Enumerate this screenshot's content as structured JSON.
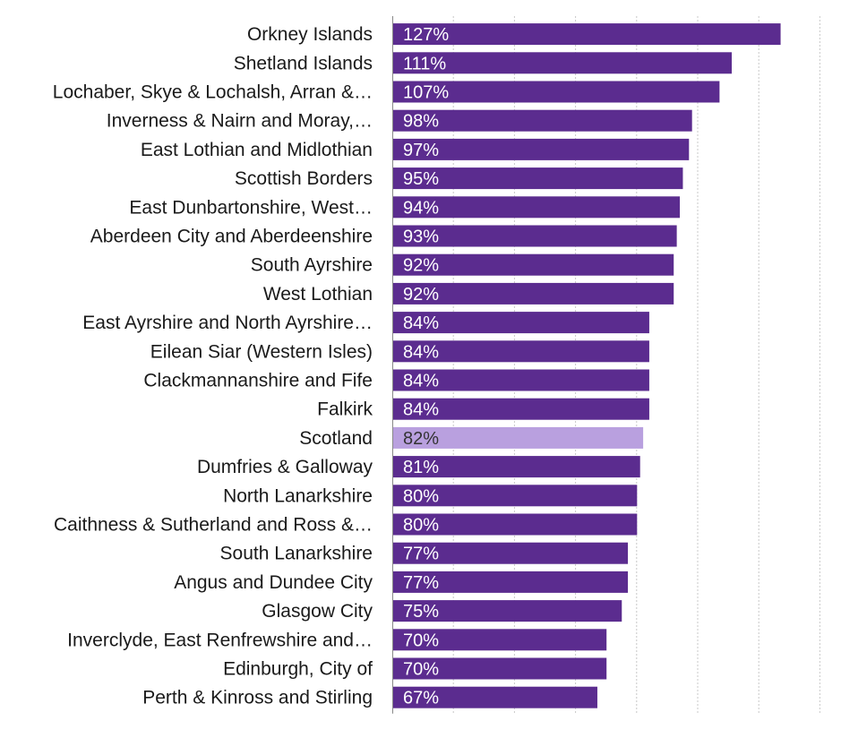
{
  "chart_data": {
    "type": "bar",
    "orientation": "horizontal",
    "categories": [
      "Orkney Islands",
      "Shetland Islands",
      "Lochaber, Skye & Lochalsh, Arran &…",
      "Inverness & Nairn and Moray,…",
      "East Lothian and Midlothian",
      "Scottish Borders",
      "East Dunbartonshire, West…",
      "Aberdeen City and Aberdeenshire",
      "South Ayrshire",
      "West Lothian",
      "East Ayrshire and North Ayrshire…",
      "Eilean Siar (Western Isles)",
      "Clackmannanshire and Fife",
      "Falkirk",
      "Scotland",
      "Dumfries & Galloway",
      "North Lanarkshire",
      "Caithness & Sutherland and Ross &…",
      "South Lanarkshire",
      "Angus and Dundee City",
      "Glasgow City",
      "Inverclyde, East Renfrewshire and…",
      "Edinburgh, City of",
      "Perth & Kinross and Stirling"
    ],
    "values": [
      127,
      111,
      107,
      98,
      97,
      95,
      94,
      93,
      92,
      92,
      84,
      84,
      84,
      84,
      82,
      81,
      80,
      80,
      77,
      77,
      75,
      70,
      70,
      67
    ],
    "value_labels": [
      "127%",
      "111%",
      "107%",
      "98%",
      "97%",
      "95%",
      "94%",
      "93%",
      "92%",
      "92%",
      "84%",
      "84%",
      "84%",
      "84%",
      "82%",
      "81%",
      "80%",
      "80%",
      "77%",
      "77%",
      "75%",
      "70%",
      "70%",
      "67%"
    ],
    "highlight_category": "Scotland",
    "xlim": [
      0,
      140
    ],
    "grid": true,
    "legend": "none",
    "title": "",
    "xlabel": "",
    "ylabel": "",
    "colors": {
      "bar": "#5B2C8F",
      "highlight_bar": "#B9A0DF",
      "bar_label": "#FFFFFF",
      "highlight_label": "#333333",
      "category_label": "#1A1A1A",
      "grid": "#C8C8C8",
      "axis": "#888888"
    }
  }
}
